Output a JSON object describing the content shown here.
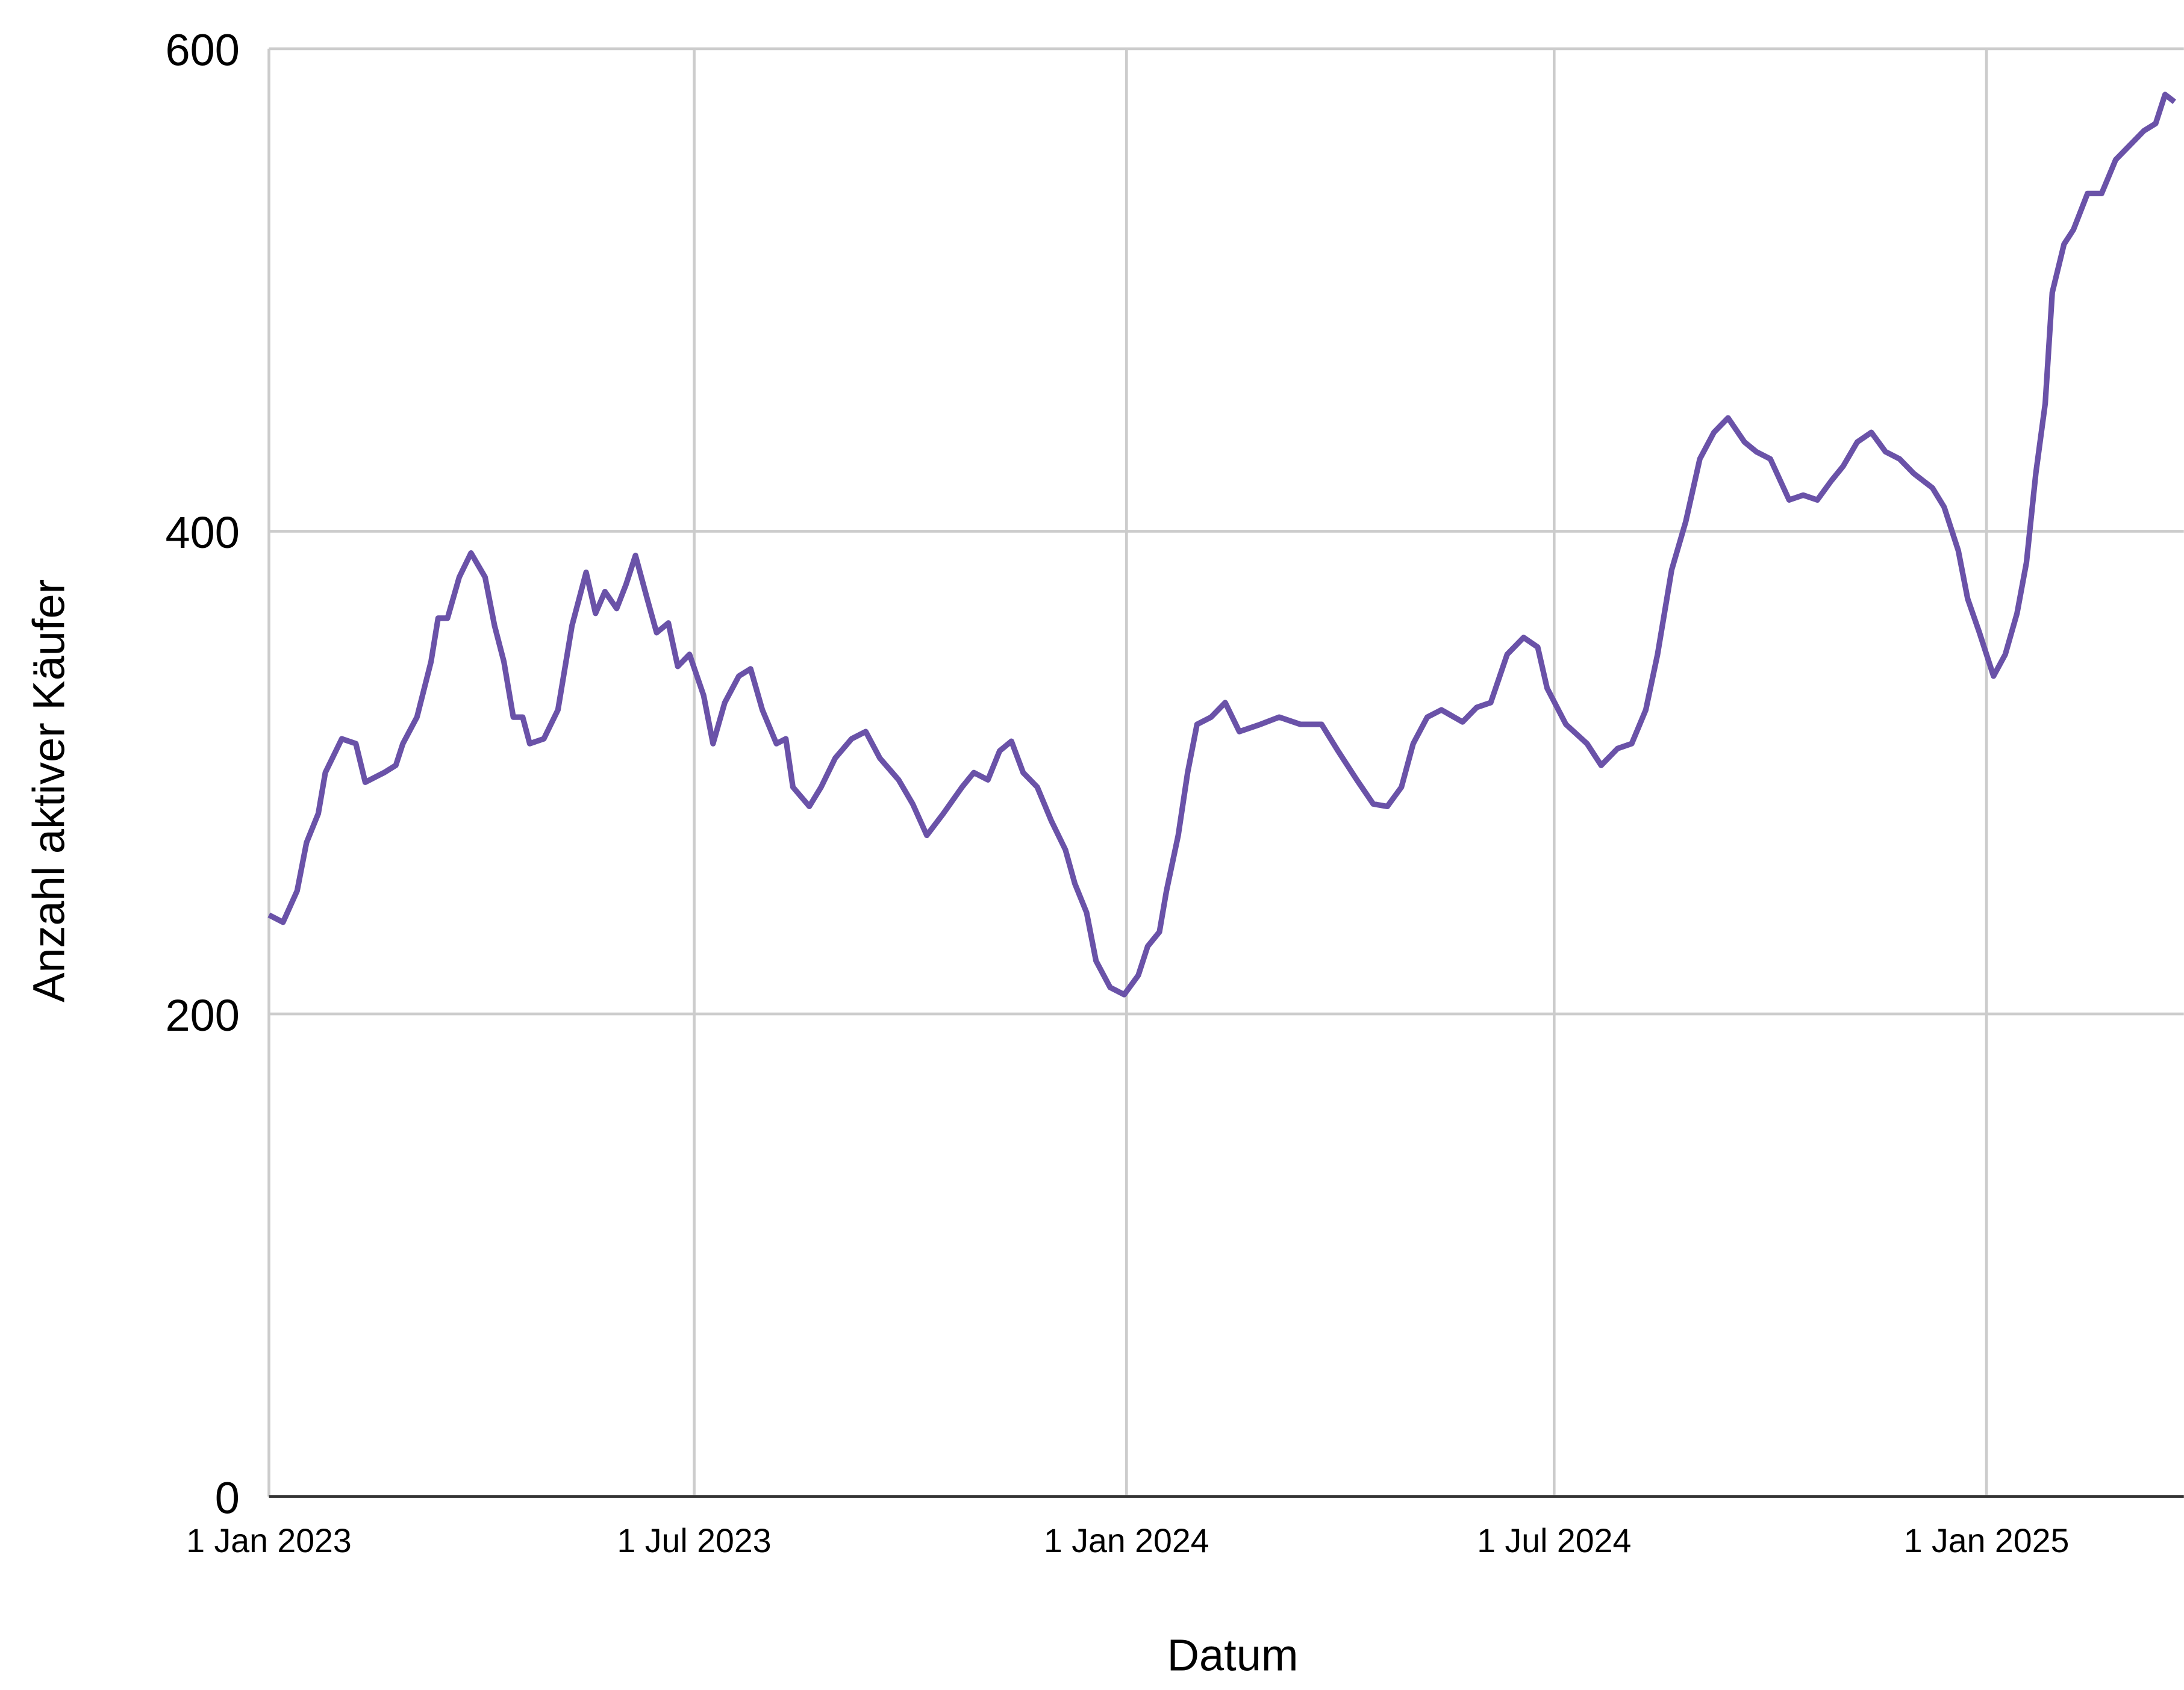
{
  "chart_data": {
    "type": "line",
    "xlabel": "Datum",
    "ylabel": "Anzahl aktiver Käufer",
    "x": [
      "2023-01-01",
      "2023-01-07",
      "2023-01-13",
      "2023-01-17",
      "2023-01-22",
      "2023-01-25",
      "2023-02-01",
      "2023-02-07",
      "2023-02-11",
      "2023-02-19",
      "2023-02-24",
      "2023-02-27",
      "2023-03-05",
      "2023-03-11",
      "2023-03-14",
      "2023-03-18",
      "2023-03-23",
      "2023-03-28",
      "2023-04-03",
      "2023-04-07",
      "2023-04-11",
      "2023-04-15",
      "2023-04-19",
      "2023-04-22",
      "2023-04-28",
      "2023-05-04",
      "2023-05-10",
      "2023-05-16",
      "2023-05-20",
      "2023-05-24",
      "2023-05-29",
      "2023-06-02",
      "2023-06-06",
      "2023-06-11",
      "2023-06-15",
      "2023-06-20",
      "2023-06-24",
      "2023-06-29",
      "2023-07-05",
      "2023-07-09",
      "2023-07-14",
      "2023-07-20",
      "2023-07-25",
      "2023-07-30",
      "2023-08-05",
      "2023-08-09",
      "2023-08-12",
      "2023-08-19",
      "2023-08-24",
      "2023-08-30",
      "2023-09-06",
      "2023-09-12",
      "2023-09-18",
      "2023-09-26",
      "2023-10-02",
      "2023-10-08",
      "2023-10-15",
      "2023-10-23",
      "2023-10-28",
      "2023-11-03",
      "2023-11-08",
      "2023-11-13",
      "2023-11-18",
      "2023-11-24",
      "2023-11-30",
      "2023-12-06",
      "2023-12-10",
      "2023-12-15",
      "2023-12-19",
      "2023-12-25",
      "2023-12-31",
      "2024-01-06",
      "2024-01-10",
      "2024-01-15",
      "2024-01-18",
      "2024-01-23",
      "2024-01-27",
      "2024-01-31",
      "2024-02-06",
      "2024-02-12",
      "2024-02-18",
      "2024-02-27",
      "2024-03-06",
      "2024-03-15",
      "2024-03-24",
      "2024-03-31",
      "2024-04-08",
      "2024-04-15",
      "2024-04-21",
      "2024-04-27",
      "2024-05-02",
      "2024-05-08",
      "2024-05-14",
      "2024-05-23",
      "2024-05-29",
      "2024-06-04",
      "2024-06-11",
      "2024-06-18",
      "2024-06-24",
      "2024-06-28",
      "2024-07-06",
      "2024-07-15",
      "2024-07-21",
      "2024-07-28",
      "2024-08-03",
      "2024-08-09",
      "2024-08-14",
      "2024-08-20",
      "2024-08-26",
      "2024-09-01",
      "2024-09-07",
      "2024-09-13",
      "2024-09-20",
      "2024-09-25",
      "2024-10-01",
      "2024-10-09",
      "2024-10-15",
      "2024-10-21",
      "2024-10-27",
      "2024-11-01",
      "2024-11-07",
      "2024-11-13",
      "2024-11-19",
      "2024-11-25",
      "2024-12-01",
      "2024-12-09",
      "2024-12-14",
      "2024-12-20",
      "2024-12-24",
      "2024-12-29",
      "2025-01-04",
      "2025-01-09",
      "2025-01-14",
      "2025-01-18",
      "2025-01-22",
      "2025-01-26",
      "2025-01-29",
      "2025-02-03",
      "2025-02-07",
      "2025-02-13",
      "2025-02-19",
      "2025-02-25",
      "2025-03-03",
      "2025-03-09",
      "2025-03-14",
      "2025-03-18",
      "2025-03-22"
    ],
    "series": [
      {
        "color": "#6a52a8",
        "values": [
          241,
          238,
          251,
          271,
          283,
          300,
          314,
          312,
          296,
          300,
          303,
          312,
          323,
          346,
          364,
          364,
          381,
          391,
          381,
          361,
          346,
          323,
          323,
          312,
          314,
          326,
          361,
          383,
          366,
          375,
          368,
          378,
          390,
          372,
          358,
          362,
          344,
          349,
          332,
          312,
          329,
          340,
          343,
          326,
          312,
          314,
          294,
          286,
          294,
          306,
          314,
          317,
          306,
          297,
          287,
          274,
          283,
          294,
          300,
          297,
          309,
          313,
          300,
          294,
          280,
          268,
          254,
          242,
          222,
          211,
          208,
          216,
          228,
          234,
          251,
          274,
          300,
          320,
          323,
          329,
          317,
          320,
          323,
          320,
          320,
          309,
          297,
          287,
          286,
          294,
          312,
          323,
          326,
          321,
          327,
          329,
          349,
          356,
          352,
          335,
          320,
          312,
          303,
          310,
          312,
          326,
          349,
          384,
          404,
          430,
          441,
          447,
          437,
          433,
          430,
          413,
          415,
          413,
          421,
          427,
          437,
          441,
          433,
          430,
          424,
          418,
          410,
          392,
          372,
          358,
          340,
          349,
          366,
          387,
          424,
          453,
          499,
          519,
          525,
          540,
          540,
          554,
          560,
          566,
          569,
          581,
          578
        ]
      }
    ],
    "xlim": [
      "2023-01-01",
      "2025-03-26"
    ],
    "xticks": [
      {
        "value": "2023-01-01",
        "label": "1 Jan 2023"
      },
      {
        "value": "2023-07-01",
        "label": "1 Jul 2023"
      },
      {
        "value": "2024-01-01",
        "label": "1 Jan 2024"
      },
      {
        "value": "2024-07-01",
        "label": "1 Jul 2024"
      },
      {
        "value": "2025-01-01",
        "label": "1 Jan 2025"
      }
    ],
    "ylim": [
      0,
      600
    ],
    "yticks": [
      0,
      200,
      400,
      600
    ],
    "grid": true
  }
}
